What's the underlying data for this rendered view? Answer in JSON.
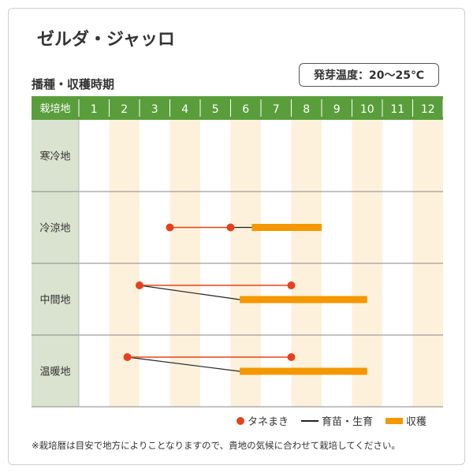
{
  "title": "ゼルダ・ジャッロ",
  "germination_temp": "発芽温度：20～25℃",
  "section_title": "播種・収穫時期",
  "legend": {
    "sowing": "タネまき",
    "seedling": "育苗・生育",
    "harvest": "収穫"
  },
  "note": "※栽培暦は目安で地方によりことなりますので、貴地の気候に合わせて栽培してください。",
  "colors": {
    "header": "#5a9e3c",
    "region_cell": "#d9e3cf",
    "alt_column": "#fdf1dc",
    "sowing": "#e8401c",
    "harvest": "#f39800",
    "seedling": "#222222"
  },
  "chart_data": {
    "type": "gantt",
    "corner_label": "栽培地",
    "months": [
      "1",
      "2",
      "3",
      "4",
      "5",
      "6",
      "7",
      "8",
      "9",
      "10",
      "11",
      "12"
    ],
    "regions": [
      {
        "name": "寒冷地",
        "sowing": null,
        "growth": null,
        "harvest": null
      },
      {
        "name": "冷涼地",
        "sowing": [
          4.0,
          6.0
        ],
        "growth": [
          6.0,
          6.7
        ],
        "harvest": [
          6.7,
          9.0
        ]
      },
      {
        "name": "中間地",
        "sowing": [
          3.0,
          8.0
        ],
        "growth": [
          3.0,
          6.3
        ],
        "harvest": [
          6.3,
          10.5
        ]
      },
      {
        "name": "温暖地",
        "sowing": [
          2.6,
          8.0
        ],
        "growth": [
          2.6,
          6.3
        ],
        "harvest": [
          6.3,
          10.5
        ]
      }
    ]
  }
}
